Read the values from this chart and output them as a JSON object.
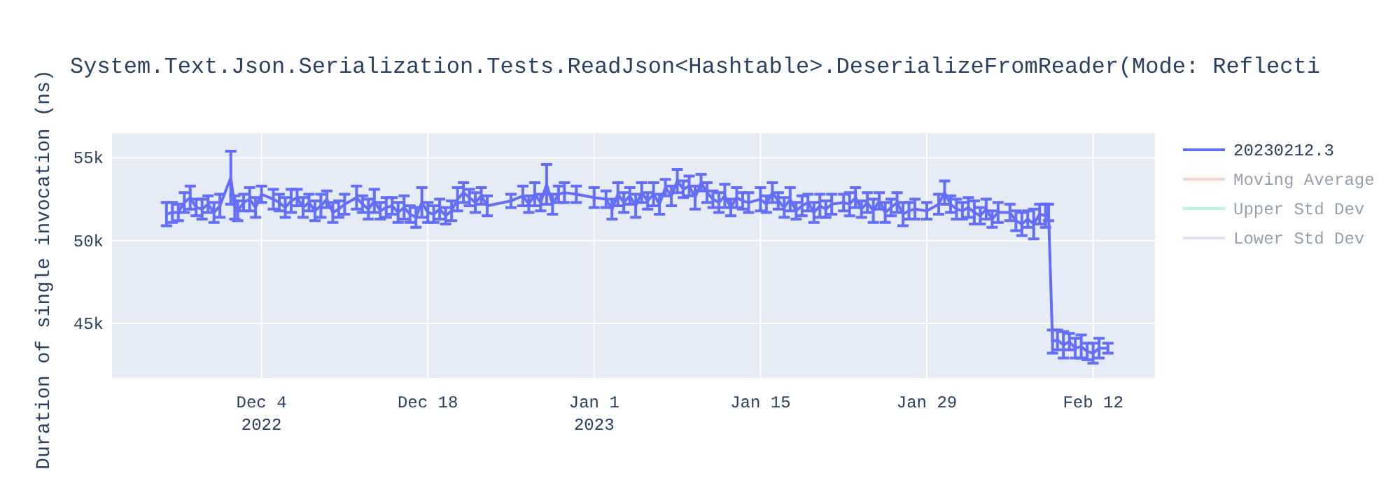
{
  "chart_data": {
    "type": "line",
    "title": "System.Text.Json.Serialization.Tests.ReadJson<Hashtable>.DeserializeFromReader(Mode: Reflecti",
    "ylabel": "Duration of single invocation (ns)",
    "xlim": [
      "2022-11-21T10:00",
      "2023-02-17T05:00"
    ],
    "xticks": [
      {
        "value": "2022-12-04",
        "label": "Dec 4\n2022"
      },
      {
        "value": "2022-12-18",
        "label": "Dec 18"
      },
      {
        "value": "2023-01-01",
        "label": "Jan 1\n2023"
      },
      {
        "value": "2023-01-15",
        "label": "Jan 15"
      },
      {
        "value": "2023-01-29",
        "label": "Jan 29"
      },
      {
        "value": "2023-02-12",
        "label": "Feb 12"
      }
    ],
    "ylim": [
      41700,
      56500
    ],
    "yticks": [
      {
        "value": 45000,
        "label": "45k"
      },
      {
        "value": 50000,
        "label": "50k"
      },
      {
        "value": 55000,
        "label": "55k"
      }
    ],
    "grid": true,
    "legend": "top right",
    "marker": "none",
    "line_style": "solid",
    "x": [
      "2022-11-26T00:00",
      "2022-11-26T12:00",
      "2022-11-27T00:00",
      "2022-11-27T12:00",
      "2022-11-28T00:00",
      "2022-11-28T12:00",
      "2022-11-29T00:00",
      "2022-11-29T12:00",
      "2022-11-30T00:00",
      "2022-11-30T12:00",
      "2022-12-01T10:00",
      "2022-12-01T18:00",
      "2022-12-02T00:00",
      "2022-12-02T12:00",
      "2022-12-03T00:00",
      "2022-12-03T12:00",
      "2022-12-04T00:00",
      "2022-12-05T00:00",
      "2022-12-05T12:00",
      "2022-12-06T00:00",
      "2022-12-06T12:00",
      "2022-12-07T00:00",
      "2022-12-07T12:00",
      "2022-12-08T00:00",
      "2022-12-08T12:00",
      "2022-12-09T00:00",
      "2022-12-09T12:00",
      "2022-12-10T00:00",
      "2022-12-10T12:00",
      "2022-12-11T00:00",
      "2022-12-12T00:00",
      "2022-12-12T12:00",
      "2022-12-13T00:00",
      "2022-12-13T12:00",
      "2022-12-14T00:00",
      "2022-12-14T12:00",
      "2022-12-15T00:00",
      "2022-12-15T12:00",
      "2022-12-16T00:00",
      "2022-12-16T12:00",
      "2022-12-17T00:00",
      "2022-12-17T12:00",
      "2022-12-18T00:00",
      "2022-12-18T12:00",
      "2022-12-19T00:00",
      "2022-12-19T12:00",
      "2022-12-20T00:00",
      "2022-12-20T12:00",
      "2022-12-21T00:00",
      "2022-12-21T12:00",
      "2022-12-22T00:00",
      "2022-12-22T12:00",
      "2022-12-23T00:00",
      "2022-12-25T00:00",
      "2022-12-26T00:00",
      "2022-12-26T12:00",
      "2022-12-27T00:00",
      "2022-12-27T12:00",
      "2022-12-28T00:00",
      "2022-12-28T12:00",
      "2022-12-29T00:00",
      "2022-12-29T12:00",
      "2022-12-30T12:00",
      "2023-01-01T00:00",
      "2023-01-02T00:00",
      "2023-01-02T12:00",
      "2023-01-03T00:00",
      "2023-01-03T12:00",
      "2023-01-04T00:00",
      "2023-01-04T12:00",
      "2023-01-05T00:00",
      "2023-01-05T12:00",
      "2023-01-06T00:00",
      "2023-01-06T12:00",
      "2023-01-07T00:00",
      "2023-01-07T12:00",
      "2023-01-08T00:00",
      "2023-01-08T12:00",
      "2023-01-09T00:00",
      "2023-01-09T12:00",
      "2023-01-10T00:00",
      "2023-01-10T12:00",
      "2023-01-11T00:00",
      "2023-01-11T12:00",
      "2023-01-12T00:00",
      "2023-01-12T12:00",
      "2023-01-13T00:00",
      "2023-01-13T12:00",
      "2023-01-14T00:00",
      "2023-01-15T00:00",
      "2023-01-15T12:00",
      "2023-01-16T00:00",
      "2023-01-16T12:00",
      "2023-01-17T00:00",
      "2023-01-17T12:00",
      "2023-01-18T00:00",
      "2023-01-18T12:00",
      "2023-01-19T00:00",
      "2023-01-19T12:00",
      "2023-01-20T00:00",
      "2023-01-20T12:00",
      "2023-01-21T00:00",
      "2023-01-22T00:00",
      "2023-01-22T12:00",
      "2023-01-23T00:00",
      "2023-01-23T12:00",
      "2023-01-24T00:00",
      "2023-01-24T12:00",
      "2023-01-25T00:00",
      "2023-01-25T12:00",
      "2023-01-26T00:00",
      "2023-01-26T12:00",
      "2023-01-27T00:00",
      "2023-01-27T12:00",
      "2023-01-28T00:00",
      "2023-01-29T00:00",
      "2023-01-30T00:00",
      "2023-01-30T12:00",
      "2023-01-31T00:00",
      "2023-01-31T12:00",
      "2023-02-01T00:00",
      "2023-02-01T12:00",
      "2023-02-02T00:00",
      "2023-02-02T12:00",
      "2023-02-03T00:00",
      "2023-02-03T12:00",
      "2023-02-04T00:00",
      "2023-02-05T00:00",
      "2023-02-05T12:00",
      "2023-02-06T00:00",
      "2023-02-06T12:00",
      "2023-02-07T00:00",
      "2023-02-07T12:00",
      "2023-02-08T00:00",
      "2023-02-08T06:00",
      "2023-02-08T14:00",
      "2023-02-09T00:00",
      "2023-02-09T12:00",
      "2023-02-10T00:00",
      "2023-02-10T12:00",
      "2023-02-11T00:00",
      "2023-02-11T12:00",
      "2023-02-12T00:00",
      "2023-02-12T12:00",
      "2023-02-13T06:00"
    ],
    "series": [
      {
        "name": "20230212.3",
        "color": "#636efa",
        "values": [
          51600,
          51700,
          51700,
          52300,
          52600,
          52000,
          51900,
          52200,
          51700,
          52100,
          53800,
          52000,
          51800,
          52300,
          52500,
          52000,
          52800,
          52500,
          52300,
          52000,
          52400,
          52600,
          52000,
          52300,
          51800,
          52100,
          52500,
          51700,
          51900,
          52200,
          52600,
          52200,
          51900,
          52400,
          51800,
          52000,
          52100,
          51700,
          52000,
          51600,
          51400,
          52300,
          51700,
          51600,
          51900,
          51500,
          51800,
          52500,
          52900,
          52600,
          52300,
          52700,
          52100,
          52400,
          52700,
          52200,
          52800,
          52300,
          53400,
          52200,
          52800,
          52900,
          52800,
          52600,
          52500,
          51900,
          52800,
          52300,
          52700,
          52100,
          52900,
          52400,
          52800,
          52200,
          53200,
          52700,
          53600,
          53100,
          53300,
          52600,
          53500,
          52900,
          52500,
          52300,
          52700,
          52000,
          52600,
          52400,
          52300,
          52500,
          52200,
          52900,
          52400,
          52000,
          52500,
          51800,
          52100,
          52300,
          51700,
          52100,
          51900,
          52200,
          52300,
          52200,
          52600,
          51900,
          52300,
          51800,
          52400,
          51700,
          52000,
          52300,
          51600,
          51800,
          51900,
          51800,
          52200,
          52900,
          52200,
          51900,
          51800,
          52000,
          51700,
          51500,
          51900,
          51300,
          51700,
          51700,
          51200,
          51000,
          51300,
          51000,
          51600,
          51500,
          51700,
          43900,
          44000,
          43700,
          43900,
          43500,
          43600,
          43300,
          43200,
          43500,
          43500
        ],
        "errors": [
          700,
          600,
          500,
          600,
          700,
          500,
          600,
          500,
          600,
          700,
          1600,
          700,
          600,
          500,
          700,
          600,
          500,
          600,
          500,
          600,
          700,
          500,
          600,
          500,
          600,
          700,
          500,
          600,
          500,
          600,
          700,
          500,
          600,
          700,
          500,
          600,
          500,
          600,
          700,
          500,
          600,
          900,
          600,
          500,
          600,
          500,
          600,
          700,
          600,
          500,
          600,
          500,
          600,
          400,
          600,
          500,
          700,
          500,
          1200,
          600,
          500,
          600,
          500,
          600,
          500,
          600,
          700,
          600,
          500,
          700,
          600,
          500,
          700,
          600,
          500,
          600,
          700,
          500,
          600,
          700,
          500,
          600,
          500,
          600,
          700,
          500,
          600,
          500,
          600,
          700,
          500,
          600,
          500,
          600,
          700,
          500,
          600,
          500,
          600,
          700,
          500,
          600,
          500,
          700,
          600,
          500,
          600,
          700,
          500,
          600,
          500,
          600,
          700,
          500,
          600,
          500,
          600,
          700,
          500,
          600,
          500,
          600,
          700,
          500,
          600,
          500,
          600,
          500,
          600,
          700,
          500,
          900,
          600,
          700,
          500,
          700,
          600,
          800,
          500,
          600,
          700,
          500,
          600,
          600,
          300
        ]
      },
      {
        "name": "Moving Average",
        "color": "#f7aa9d",
        "values": [
          null,
          null,
          null,
          null,
          null,
          null,
          null,
          null,
          null,
          null,
          null,
          null,
          null,
          null,
          null,
          null,
          null,
          null,
          null,
          null,
          null,
          null,
          null,
          null,
          null,
          null,
          null,
          null,
          null,
          null,
          null,
          null,
          null,
          null,
          null,
          null,
          null,
          null,
          null,
          null,
          null,
          null,
          null,
          null,
          null,
          null,
          null,
          null,
          null,
          null,
          null,
          null,
          null,
          null,
          null,
          null,
          null,
          null,
          null,
          null,
          null,
          null,
          null,
          null,
          null,
          null,
          null,
          null,
          null,
          null,
          null,
          null,
          null,
          null,
          null,
          null,
          null,
          null,
          null,
          null,
          null,
          null,
          null,
          null,
          null,
          null,
          null,
          null,
          null,
          null,
          null,
          null,
          null,
          null,
          null,
          null,
          null,
          null,
          null,
          null,
          null,
          null,
          null,
          null,
          null,
          null,
          null,
          null,
          null,
          null,
          null,
          null,
          null,
          null,
          null,
          null,
          null,
          null,
          null,
          null,
          null,
          null,
          null,
          null,
          null,
          null,
          null,
          null,
          null,
          null,
          null,
          null,
          null,
          null,
          null,
          null,
          null,
          null,
          null,
          null,
          null,
          null,
          null,
          null,
          null
        ]
      },
      {
        "name": "Upper Std Dev",
        "color": "#80e5cb",
        "values": [
          null,
          null,
          null,
          null,
          null,
          null,
          null,
          null,
          null,
          null,
          null,
          null,
          null,
          null,
          null,
          null,
          null,
          null,
          null,
          null,
          null,
          null,
          null,
          null,
          null,
          null,
          null,
          null,
          null,
          null,
          null,
          null,
          null,
          null,
          null,
          null,
          null,
          null,
          null,
          null,
          null,
          null,
          null,
          null,
          null,
          null,
          null,
          null,
          null,
          null,
          null,
          null,
          null,
          null,
          null,
          null,
          null,
          null,
          null,
          null,
          null,
          null,
          null,
          null,
          null,
          null,
          null,
          null,
          null,
          null,
          null,
          null,
          null,
          null,
          null,
          null,
          null,
          null,
          null,
          null,
          null,
          null,
          null,
          null,
          null,
          null,
          null,
          null,
          null,
          null,
          null,
          null,
          null,
          null,
          null,
          null,
          null,
          null,
          null,
          null,
          null,
          null,
          null,
          null,
          null,
          null,
          null,
          null,
          null,
          null,
          null,
          null,
          null,
          null,
          null,
          null,
          null,
          null,
          null,
          null,
          null,
          null,
          null,
          null,
          null,
          null,
          null,
          null,
          null,
          null,
          null,
          null,
          null,
          null,
          null,
          null,
          null,
          null,
          null,
          null,
          null,
          null,
          null,
          null,
          null
        ]
      },
      {
        "name": "Lower Std Dev",
        "color": "#d5b1fc",
        "values": [
          null,
          null,
          null,
          null,
          null,
          null,
          null,
          null,
          null,
          null,
          null,
          null,
          null,
          null,
          null,
          null,
          null,
          null,
          null,
          null,
          null,
          null,
          null,
          null,
          null,
          null,
          null,
          null,
          null,
          null,
          null,
          null,
          null,
          null,
          null,
          null,
          null,
          null,
          null,
          null,
          null,
          null,
          null,
          null,
          null,
          null,
          null,
          null,
          null,
          null,
          null,
          null,
          null,
          null,
          null,
          null,
          null,
          null,
          null,
          null,
          null,
          null,
          null,
          null,
          null,
          null,
          null,
          null,
          null,
          null,
          null,
          null,
          null,
          null,
          null,
          null,
          null,
          null,
          null,
          null,
          null,
          null,
          null,
          null,
          null,
          null,
          null,
          null,
          null,
          null,
          null,
          null,
          null,
          null,
          null,
          null,
          null,
          null,
          null,
          null,
          null,
          null,
          null,
          null,
          null,
          null,
          null,
          null,
          null,
          null,
          null,
          null,
          null,
          null,
          null,
          null,
          null,
          null,
          null,
          null,
          null,
          null,
          null,
          null,
          null,
          null,
          null,
          null,
          null,
          null,
          null,
          null,
          null,
          null,
          null,
          null,
          null,
          null,
          null,
          null,
          null,
          null,
          null,
          null,
          null
        ]
      }
    ]
  }
}
